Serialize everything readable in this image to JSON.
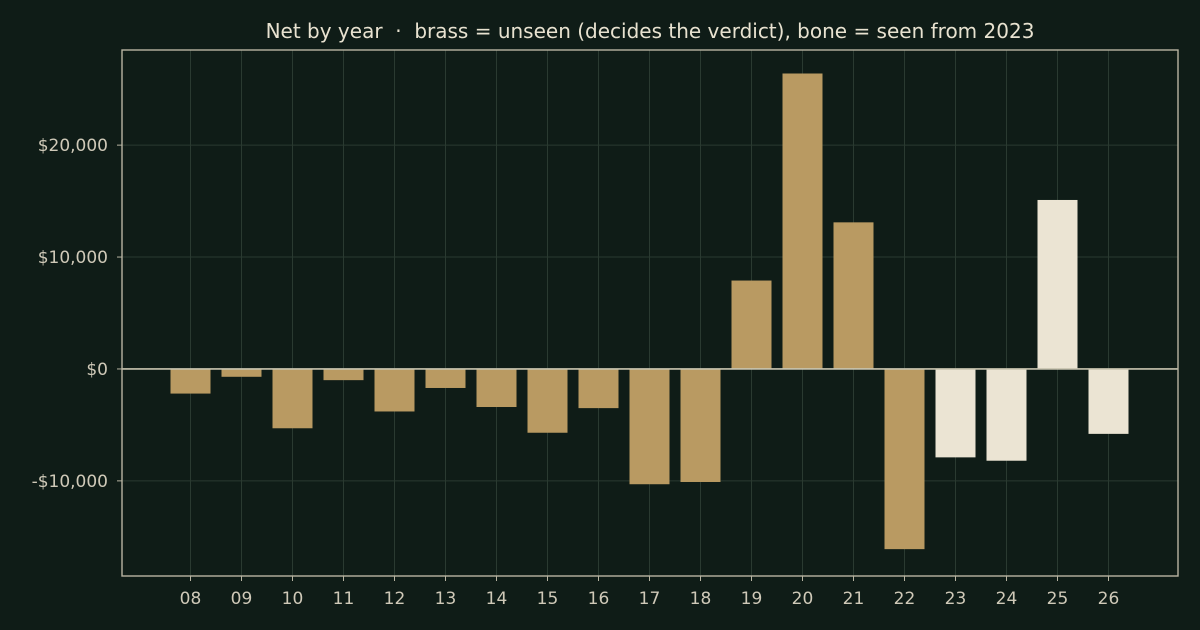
{
  "chart_data": {
    "type": "bar",
    "title": "Net by year  ·  brass = unseen (decides the verdict), bone = seen from 2023",
    "xlabel": "",
    "ylabel": "",
    "categories": [
      "08",
      "09",
      "10",
      "11",
      "12",
      "13",
      "14",
      "15",
      "16",
      "17",
      "18",
      "19",
      "20",
      "21",
      "22",
      "23",
      "24",
      "25",
      "26"
    ],
    "values": [
      -2200,
      -700,
      -5300,
      -1000,
      -3800,
      -1700,
      -3400,
      -5700,
      -3500,
      -10300,
      -10100,
      7900,
      26400,
      13100,
      -16100,
      -7900,
      -8200,
      15100,
      -5800
    ],
    "groups": [
      "unseen",
      "unseen",
      "unseen",
      "unseen",
      "unseen",
      "unseen",
      "unseen",
      "unseen",
      "unseen",
      "unseen",
      "unseen",
      "unseen",
      "unseen",
      "unseen",
      "unseen",
      "seen",
      "seen",
      "seen",
      "seen"
    ],
    "ylim": [
      -18500,
      28500
    ],
    "yticks": [
      -10000,
      0,
      10000,
      20000
    ],
    "ytick_labels": [
      "-$10,000",
      "$0",
      "$10,000",
      "$20,000"
    ],
    "grid": true,
    "colors": {
      "background": "#0f1c17",
      "unseen": "#b99a62",
      "seen": "#ebe4d3",
      "text": "#cfc9b8",
      "title": "#e8e2d0",
      "axis": "#b8b4a2",
      "grid": "#2a3a31",
      "zero_line": "#c9c4b0"
    }
  }
}
